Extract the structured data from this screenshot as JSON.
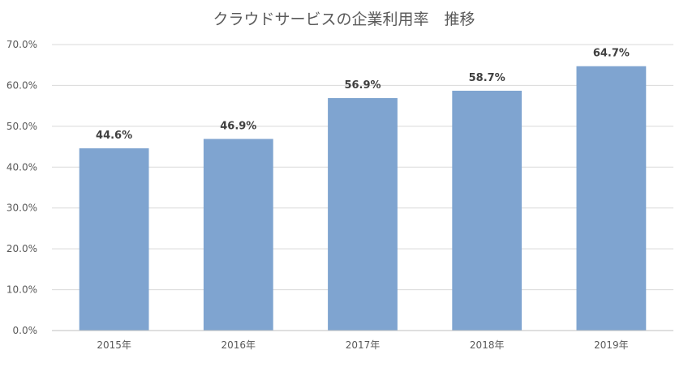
{
  "chart_data": {
    "type": "bar",
    "title": "クラウドサービスの企業利用率　推移",
    "xlabel": "",
    "ylabel": "",
    "categories": [
      "2015年",
      "2016年",
      "2017年",
      "2018年",
      "2019年"
    ],
    "values": [
      44.6,
      46.9,
      56.9,
      58.7,
      64.7
    ],
    "data_labels": [
      "44.6%",
      "46.9%",
      "56.9%",
      "58.7%",
      "64.7%"
    ],
    "ylim": [
      0,
      70
    ],
    "yticks": [
      0,
      10,
      20,
      30,
      40,
      50,
      60,
      70
    ],
    "ytick_labels": [
      "0.0%",
      "10.0%",
      "20.0%",
      "30.0%",
      "40.0%",
      "50.0%",
      "60.0%",
      "70.0%"
    ],
    "grid": true,
    "legend": "none",
    "bar_color": "#7fa4d0",
    "grid_color": "#d9d9d9"
  }
}
